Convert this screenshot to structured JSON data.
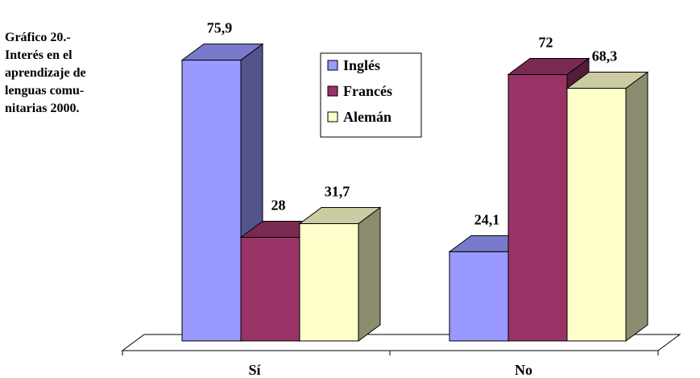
{
  "title_lines": [
    "Gráfico 20.-",
    "Interés en el",
    "aprendizaje de",
    "lenguas comu-",
    "nitarias 2000."
  ],
  "chart_data": {
    "type": "bar",
    "subtype": "3d-clustered",
    "categories": [
      "Sí",
      "No"
    ],
    "series": [
      {
        "name": "Inglés",
        "values": [
          75.9,
          24.1
        ],
        "labels": [
          "75,9",
          "24,1"
        ],
        "color": "#9999ff"
      },
      {
        "name": "Francés",
        "values": [
          28,
          72
        ],
        "labels": [
          "28",
          "72"
        ],
        "color": "#993366"
      },
      {
        "name": "Alemán",
        "values": [
          31.7,
          68.3
        ],
        "labels": [
          "31,7",
          "68,3"
        ],
        "color": "#ffffcc"
      }
    ],
    "ylim": [
      0,
      80
    ],
    "grid": false,
    "legend": "top-center"
  }
}
